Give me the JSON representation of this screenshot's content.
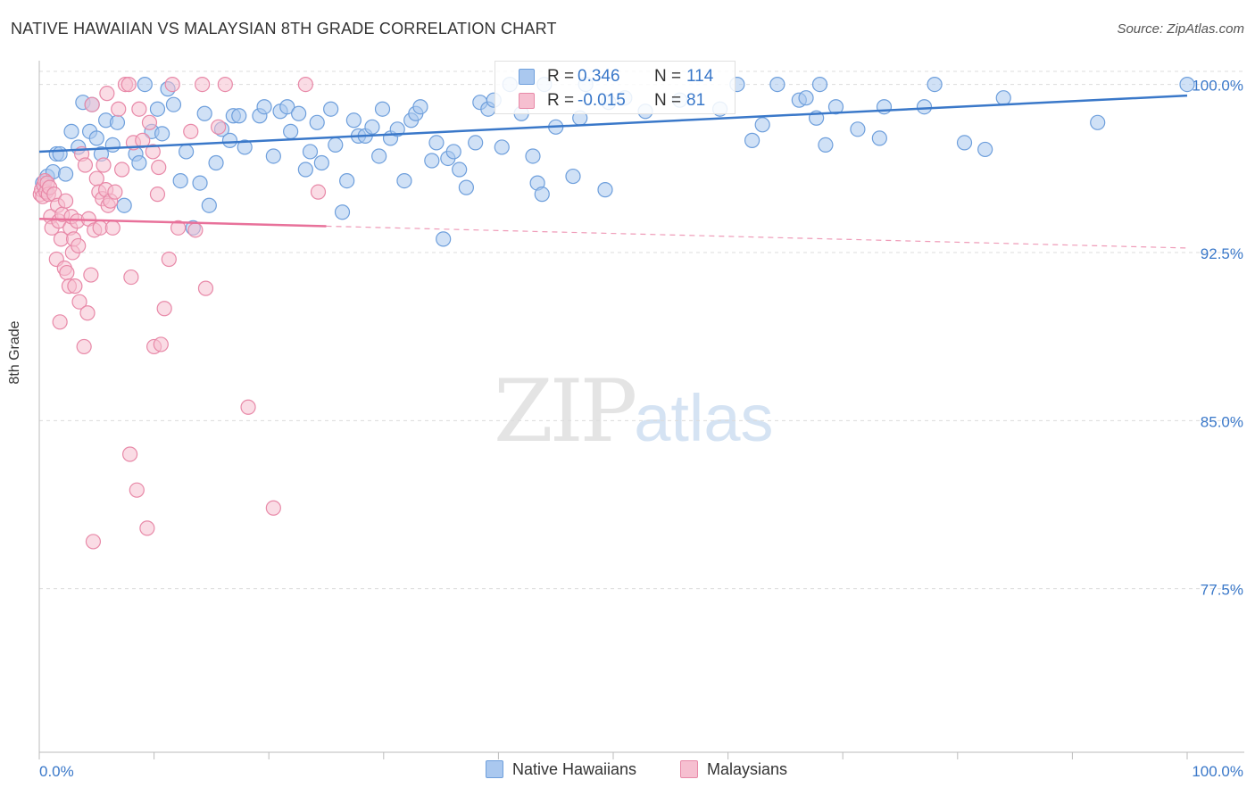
{
  "title": "NATIVE HAWAIIAN VS MALAYSIAN 8TH GRADE CORRELATION CHART",
  "source": "Source: ZipAtlas.com",
  "watermark": {
    "zip": "ZIP",
    "atlas": "atlas"
  },
  "legend": {
    "r_label": "R =",
    "n_label": "N =",
    "rows": [
      {
        "name": "Native Hawaiians",
        "r": "0.346",
        "n": "114",
        "color": "#aac8ef",
        "border": "#6e9fdc"
      },
      {
        "name": "Malaysians",
        "r": "-0.015",
        "n": "81",
        "color": "#f6bfd0",
        "border": "#e889a8"
      }
    ]
  },
  "chart_data": {
    "type": "scatter",
    "title": "NATIVE HAWAIIAN VS MALAYSIAN 8TH GRADE CORRELATION CHART",
    "xlabel": "",
    "ylabel": "8th Grade",
    "xlim": [
      0,
      100
    ],
    "ylim": [
      70.2,
      100.9
    ],
    "x_tick_labels": [
      "0.0%",
      "100.0%"
    ],
    "y_ticks": [
      77.5,
      85.0,
      92.5,
      100.0
    ],
    "y_tick_labels": [
      "77.5%",
      "85.0%",
      "92.5%",
      "100.0%"
    ],
    "colors": {
      "blue": "#3a78c9",
      "pink": "#e8719a",
      "tick_text": "#3a78c9",
      "grid": "#dcdcdc"
    },
    "series": [
      {
        "name": "Native Hawaiians",
        "color": "#6e9fdc",
        "fill": "#aac8ef",
        "trend": {
          "x": [
            0,
            100
          ],
          "y": [
            97.0,
            99.5
          ],
          "dashed_from": null
        },
        "points": [
          [
            0.3,
            95.6
          ],
          [
            0.5,
            95.3
          ],
          [
            0.7,
            95.9
          ],
          [
            1.2,
            96.1
          ],
          [
            1.5,
            96.9
          ],
          [
            1.8,
            96.9
          ],
          [
            2.3,
            96.0
          ],
          [
            2.8,
            97.9
          ],
          [
            3.4,
            97.2
          ],
          [
            3.8,
            99.2
          ],
          [
            4.4,
            97.9
          ],
          [
            4.6,
            99.1
          ],
          [
            5.0,
            97.6
          ],
          [
            5.4,
            96.9
          ],
          [
            5.8,
            98.4
          ],
          [
            6.4,
            97.3
          ],
          [
            6.8,
            98.3
          ],
          [
            7.4,
            94.6
          ],
          [
            8.4,
            96.9
          ],
          [
            8.7,
            96.5
          ],
          [
            9.2,
            100.0
          ],
          [
            9.8,
            97.9
          ],
          [
            10.3,
            98.9
          ],
          [
            10.7,
            97.8
          ],
          [
            11.2,
            99.8
          ],
          [
            11.7,
            99.1
          ],
          [
            12.3,
            95.7
          ],
          [
            12.8,
            97.0
          ],
          [
            13.4,
            93.6
          ],
          [
            14.0,
            95.6
          ],
          [
            14.4,
            98.7
          ],
          [
            14.8,
            94.6
          ],
          [
            15.4,
            96.5
          ],
          [
            15.9,
            98.0
          ],
          [
            16.6,
            97.5
          ],
          [
            16.9,
            98.6
          ],
          [
            17.4,
            98.6
          ],
          [
            17.9,
            97.2
          ],
          [
            19.2,
            98.6
          ],
          [
            19.6,
            99.0
          ],
          [
            20.4,
            96.8
          ],
          [
            21.0,
            98.8
          ],
          [
            21.6,
            99.0
          ],
          [
            21.9,
            97.9
          ],
          [
            22.6,
            98.7
          ],
          [
            23.2,
            96.2
          ],
          [
            23.6,
            97.0
          ],
          [
            24.2,
            98.3
          ],
          [
            24.6,
            96.5
          ],
          [
            25.4,
            98.9
          ],
          [
            25.8,
            97.3
          ],
          [
            26.4,
            94.3
          ],
          [
            26.8,
            95.7
          ],
          [
            27.4,
            98.4
          ],
          [
            27.8,
            97.7
          ],
          [
            28.4,
            97.7
          ],
          [
            29.0,
            98.1
          ],
          [
            29.6,
            96.8
          ],
          [
            29.9,
            98.9
          ],
          [
            30.6,
            97.6
          ],
          [
            31.2,
            98.0
          ],
          [
            31.8,
            95.7
          ],
          [
            32.4,
            98.4
          ],
          [
            32.8,
            98.7
          ],
          [
            33.2,
            99.0
          ],
          [
            34.2,
            96.6
          ],
          [
            34.6,
            97.4
          ],
          [
            35.2,
            93.1
          ],
          [
            35.6,
            96.7
          ],
          [
            36.1,
            97.0
          ],
          [
            36.6,
            96.2
          ],
          [
            37.2,
            95.4
          ],
          [
            38.0,
            97.4
          ],
          [
            38.4,
            99.2
          ],
          [
            39.1,
            98.9
          ],
          [
            39.6,
            99.3
          ],
          [
            40.3,
            97.2
          ],
          [
            41.0,
            100.0
          ],
          [
            42.0,
            98.7
          ],
          [
            43.0,
            96.8
          ],
          [
            43.4,
            95.6
          ],
          [
            43.8,
            95.1
          ],
          [
            44.0,
            100.0
          ],
          [
            45.0,
            98.1
          ],
          [
            46.5,
            95.9
          ],
          [
            47.1,
            98.5
          ],
          [
            47.6,
            100.0
          ],
          [
            49.3,
            95.3
          ],
          [
            49.6,
            99.2
          ],
          [
            51.0,
            99.4
          ],
          [
            52.8,
            98.8
          ],
          [
            55.8,
            99.3
          ],
          [
            59.3,
            98.9
          ],
          [
            60.8,
            100.0
          ],
          [
            62.1,
            97.5
          ],
          [
            63.0,
            98.2
          ],
          [
            64.3,
            100.0
          ],
          [
            66.2,
            99.3
          ],
          [
            66.8,
            99.4
          ],
          [
            67.7,
            98.5
          ],
          [
            68.0,
            100.0
          ],
          [
            68.5,
            97.3
          ],
          [
            69.4,
            99.0
          ],
          [
            71.3,
            98.0
          ],
          [
            73.2,
            97.6
          ],
          [
            73.6,
            99.0
          ],
          [
            77.1,
            99.0
          ],
          [
            78.0,
            100.0
          ],
          [
            80.6,
            97.4
          ],
          [
            82.4,
            97.1
          ],
          [
            84.0,
            99.4
          ],
          [
            92.2,
            98.3
          ],
          [
            100.0,
            100.0
          ]
        ]
      },
      {
        "name": "Malaysians",
        "color": "#e889a8",
        "fill": "#f6bfd0",
        "trend": {
          "x": [
            0,
            100
          ],
          "y": [
            94.0,
            92.7
          ],
          "dashed_from": 25
        },
        "points": [
          [
            0.1,
            95.1
          ],
          [
            0.2,
            95.3
          ],
          [
            0.3,
            95.0
          ],
          [
            0.4,
            95.5
          ],
          [
            0.5,
            95.7
          ],
          [
            0.6,
            95.2
          ],
          [
            0.7,
            95.6
          ],
          [
            0.8,
            95.1
          ],
          [
            0.9,
            95.4
          ],
          [
            1.0,
            94.1
          ],
          [
            1.1,
            93.6
          ],
          [
            1.3,
            95.1
          ],
          [
            1.5,
            92.2
          ],
          [
            1.6,
            94.6
          ],
          [
            1.7,
            93.9
          ],
          [
            1.8,
            89.4
          ],
          [
            1.9,
            93.1
          ],
          [
            2.0,
            94.2
          ],
          [
            2.2,
            91.8
          ],
          [
            2.3,
            94.8
          ],
          [
            2.4,
            91.6
          ],
          [
            2.6,
            91.0
          ],
          [
            2.7,
            93.6
          ],
          [
            2.8,
            94.1
          ],
          [
            2.9,
            92.5
          ],
          [
            3.0,
            93.1
          ],
          [
            3.1,
            91.0
          ],
          [
            3.3,
            93.9
          ],
          [
            3.4,
            92.8
          ],
          [
            3.5,
            90.3
          ],
          [
            3.7,
            96.9
          ],
          [
            3.9,
            88.3
          ],
          [
            4.0,
            96.4
          ],
          [
            4.2,
            89.8
          ],
          [
            4.3,
            94.0
          ],
          [
            4.5,
            91.5
          ],
          [
            4.6,
            99.1
          ],
          [
            4.7,
            79.6
          ],
          [
            4.8,
            93.5
          ],
          [
            5.0,
            95.8
          ],
          [
            5.2,
            95.2
          ],
          [
            5.3,
            93.6
          ],
          [
            5.5,
            94.9
          ],
          [
            5.6,
            96.4
          ],
          [
            5.8,
            95.3
          ],
          [
            5.9,
            99.6
          ],
          [
            6.0,
            94.6
          ],
          [
            6.2,
            94.8
          ],
          [
            6.4,
            93.6
          ],
          [
            6.6,
            95.2
          ],
          [
            6.9,
            98.9
          ],
          [
            7.2,
            96.2
          ],
          [
            7.5,
            100.0
          ],
          [
            7.8,
            100.0
          ],
          [
            7.9,
            83.5
          ],
          [
            8.0,
            91.4
          ],
          [
            8.2,
            97.4
          ],
          [
            8.5,
            81.9
          ],
          [
            8.7,
            98.9
          ],
          [
            9.0,
            97.5
          ],
          [
            9.4,
            80.2
          ],
          [
            9.6,
            98.3
          ],
          [
            9.9,
            97.0
          ],
          [
            10.0,
            88.3
          ],
          [
            10.3,
            95.1
          ],
          [
            10.4,
            96.3
          ],
          [
            10.6,
            88.4
          ],
          [
            10.9,
            90.0
          ],
          [
            11.3,
            92.2
          ],
          [
            11.6,
            100.0
          ],
          [
            12.1,
            93.6
          ],
          [
            13.2,
            97.9
          ],
          [
            13.6,
            93.5
          ],
          [
            14.2,
            100.0
          ],
          [
            14.5,
            90.9
          ],
          [
            15.6,
            98.1
          ],
          [
            16.2,
            100.0
          ],
          [
            18.2,
            85.6
          ],
          [
            20.4,
            81.1
          ],
          [
            23.2,
            100.0
          ],
          [
            24.3,
            95.2
          ]
        ]
      }
    ]
  }
}
